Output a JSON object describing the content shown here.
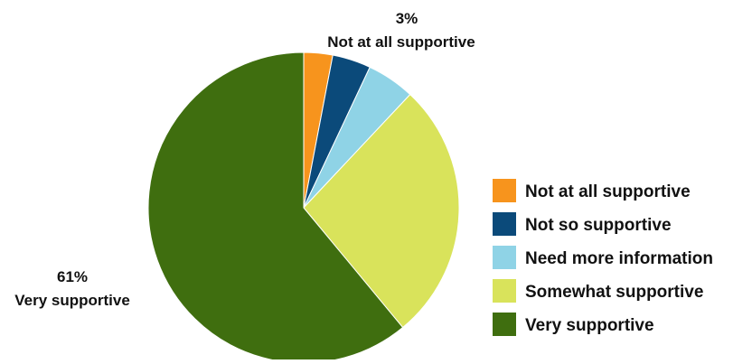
{
  "chart_data": {
    "type": "pie",
    "title": "",
    "slices": [
      {
        "label": "Not at all supportive",
        "value": 3,
        "color": "#f7941d"
      },
      {
        "label": "Not so supportive",
        "value": 4,
        "color": "#0b4a7a"
      },
      {
        "label": "Need more information",
        "value": 5,
        "color": "#8fd3e6"
      },
      {
        "label": "Somewhat supportive",
        "value": 27,
        "color": "#d9e35b"
      },
      {
        "label": "Very supportive",
        "value": 61,
        "color": "#3f6e0f"
      }
    ],
    "data_labels": [
      {
        "slice": "Not at all supportive",
        "percent_text": "3%",
        "label_text": "Not at all supportive"
      },
      {
        "slice": "Very supportive",
        "percent_text": "61%",
        "label_text": "Very supportive"
      }
    ],
    "legend_position": "right"
  }
}
